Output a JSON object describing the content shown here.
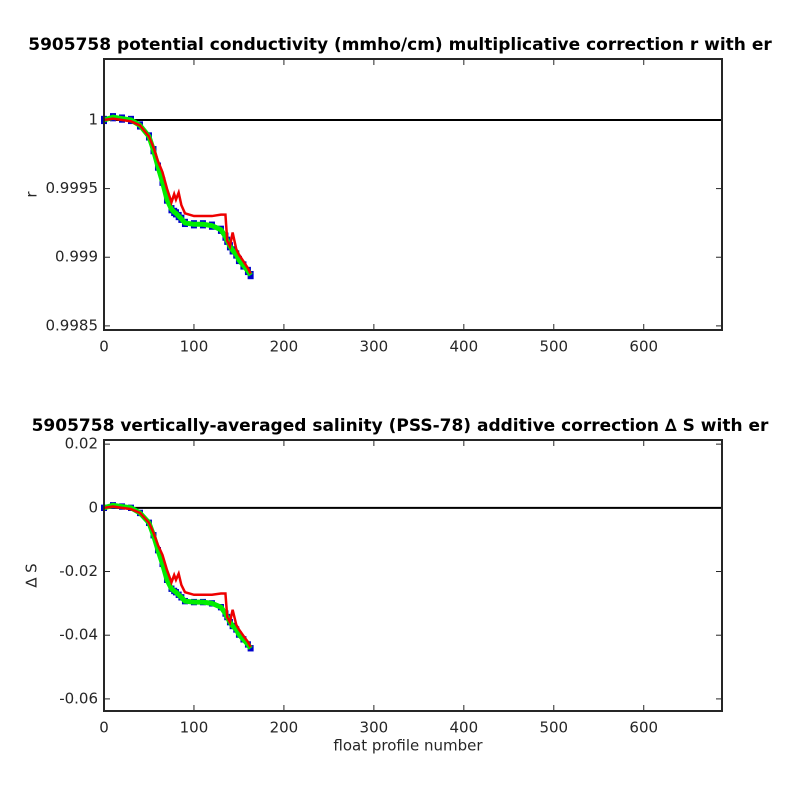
{
  "chart_data": [
    {
      "type": "line",
      "title": "5905758 potential conductivity (mmho/cm) multiplicative correction r with er",
      "y_label": "r",
      "x": [
        0,
        10,
        20,
        30,
        40,
        50,
        55,
        60,
        65,
        70,
        75,
        78,
        80,
        83,
        86,
        90,
        100,
        110,
        120,
        130,
        135,
        137,
        140,
        143,
        147,
        150,
        155,
        160,
        163
      ],
      "series": [
        {
          "color": "#00ee00",
          "error_color": "#0000cc",
          "error": 3e-05,
          "values": [
            1.0,
            1.00002,
            1.00001,
            1.0,
            0.99996,
            0.99988,
            0.99978,
            0.99966,
            0.99955,
            0.99942,
            0.99935,
            0.99933,
            0.99932,
            0.9993,
            0.99928,
            0.99925,
            0.99924,
            0.99924,
            0.99923,
            0.9992,
            0.99915,
            0.99912,
            0.99908,
            0.99905,
            0.99902,
            0.99898,
            0.99894,
            0.9989,
            0.99887
          ]
        },
        {
          "color": "#ee0000",
          "values": [
            1.0,
            1.00001,
            1.0,
            0.99999,
            0.99996,
            0.99988,
            0.9998,
            0.9997,
            0.99962,
            0.9995,
            0.9994,
            0.99946,
            0.99942,
            0.99947,
            0.99938,
            0.99932,
            0.9993,
            0.9993,
            0.9993,
            0.99931,
            0.99931,
            0.99912,
            0.99908,
            0.99918,
            0.99906,
            0.99902,
            0.99897,
            0.99892,
            0.99888
          ]
        }
      ],
      "reference_line": 1,
      "xlim": [
        0,
        687
      ],
      "xticks": [
        0,
        100,
        200,
        300,
        400,
        500,
        600
      ],
      "ylim": [
        0.99847,
        1.000444
      ],
      "yticks": [
        0.9985,
        0.999,
        0.9995,
        1
      ]
    },
    {
      "type": "line",
      "title": "5905758 vertically-averaged salinity (PSS-78) additive correction ∆ S with er",
      "y_label": "∆ S",
      "x_label": "float profile number",
      "x": [
        0,
        10,
        20,
        30,
        40,
        50,
        55,
        60,
        65,
        70,
        75,
        78,
        80,
        83,
        86,
        90,
        100,
        110,
        120,
        130,
        135,
        137,
        140,
        143,
        147,
        150,
        155,
        160,
        163
      ],
      "series": [
        {
          "color": "#00ee00",
          "error_color": "#0000cc",
          "error": 0.001,
          "values": [
            0,
            0.0008,
            0.0004,
            0,
            -0.0016,
            -0.0047,
            -0.0086,
            -0.0133,
            -0.0176,
            -0.0226,
            -0.0254,
            -0.0261,
            -0.0265,
            -0.0273,
            -0.0281,
            -0.0293,
            -0.0296,
            -0.0296,
            -0.03,
            -0.0312,
            -0.0332,
            -0.0343,
            -0.0359,
            -0.0371,
            -0.0382,
            -0.0398,
            -0.0413,
            -0.0429,
            -0.0441
          ]
        },
        {
          "color": "#ee0000",
          "values": [
            0,
            0.0004,
            0,
            -0.0004,
            -0.0016,
            -0.0047,
            -0.0078,
            -0.0117,
            -0.0148,
            -0.0195,
            -0.0234,
            -0.0211,
            -0.0226,
            -0.0207,
            -0.0242,
            -0.0265,
            -0.0273,
            -0.0273,
            -0.0273,
            -0.0269,
            -0.0269,
            -0.0343,
            -0.0359,
            -0.032,
            -0.0367,
            -0.0382,
            -0.0402,
            -0.0421,
            -0.0437
          ]
        }
      ],
      "reference_line": 0,
      "xlim": [
        0,
        687
      ],
      "xticks": [
        0,
        100,
        200,
        300,
        400,
        500,
        600
      ],
      "ylim": [
        -0.0638,
        0.0213
      ],
      "yticks": [
        0.02,
        0,
        -0.02,
        -0.04,
        -0.06
      ]
    }
  ]
}
